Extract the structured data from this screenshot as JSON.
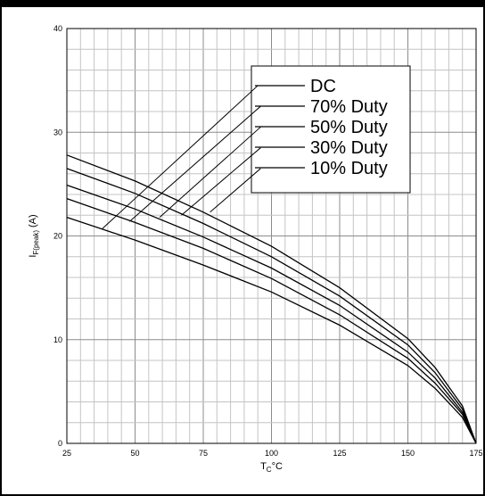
{
  "chart_data": {
    "type": "line",
    "x_tick_labels": [
      "25",
      "50",
      "75",
      "100",
      "125",
      "150",
      "175"
    ],
    "y_tick_labels": [
      "0",
      "10",
      "20",
      "30",
      "40"
    ],
    "xlim": [
      25,
      175
    ],
    "ylim": [
      0,
      40
    ],
    "grid": true,
    "legend_position": "top-right",
    "xlabel": {
      "main": "T",
      "sub": "C",
      "unit": "°C"
    },
    "ylabel": {
      "main": "I",
      "sub": "F(peak)",
      "unit": "(A)"
    },
    "series": [
      {
        "name": "DC",
        "x": [
          25,
          50,
          75,
          100,
          125,
          150,
          160,
          170,
          175
        ],
        "y": [
          27.8,
          25.3,
          22.3,
          19.0,
          15.0,
          10.1,
          7.3,
          3.6,
          0
        ]
      },
      {
        "name": "70% Duty",
        "x": [
          25,
          50,
          75,
          100,
          125,
          150,
          160,
          170,
          175
        ],
        "y": [
          26.5,
          24.1,
          21.2,
          18.0,
          14.2,
          9.5,
          6.8,
          3.3,
          0
        ]
      },
      {
        "name": "50% Duty",
        "x": [
          25,
          50,
          75,
          100,
          125,
          150,
          160,
          170,
          175
        ],
        "y": [
          24.9,
          22.6,
          19.9,
          16.9,
          13.3,
          8.8,
          6.3,
          3.0,
          0
        ]
      },
      {
        "name": "30% Duty",
        "x": [
          25,
          50,
          75,
          100,
          125,
          150,
          160,
          170,
          175
        ],
        "y": [
          23.6,
          21.3,
          18.8,
          15.9,
          12.4,
          8.2,
          5.8,
          2.8,
          0
        ]
      },
      {
        "name": "10% Duty",
        "x": [
          25,
          50,
          75,
          100,
          125,
          150,
          160,
          170,
          175
        ],
        "y": [
          21.8,
          19.6,
          17.2,
          14.6,
          11.4,
          7.5,
          5.3,
          2.5,
          0
        ]
      }
    ],
    "leader_lines": [
      {
        "series": "DC",
        "from": [
          38,
          20.7
        ],
        "to": [
          95,
          34.5
        ]
      },
      {
        "series": "70% Duty",
        "from": [
          48,
          21.4
        ],
        "to": [
          96,
          32.5
        ]
      },
      {
        "series": "50% Duty",
        "from": [
          59,
          21.8
        ],
        "to": [
          96,
          30.5
        ]
      },
      {
        "series": "30% Duty",
        "from": [
          67,
          22.0
        ],
        "to": [
          96,
          28.5
        ]
      },
      {
        "series": "10% Duty",
        "from": [
          77.5,
          22.3
        ],
        "to": [
          96,
          26.5
        ]
      }
    ]
  }
}
